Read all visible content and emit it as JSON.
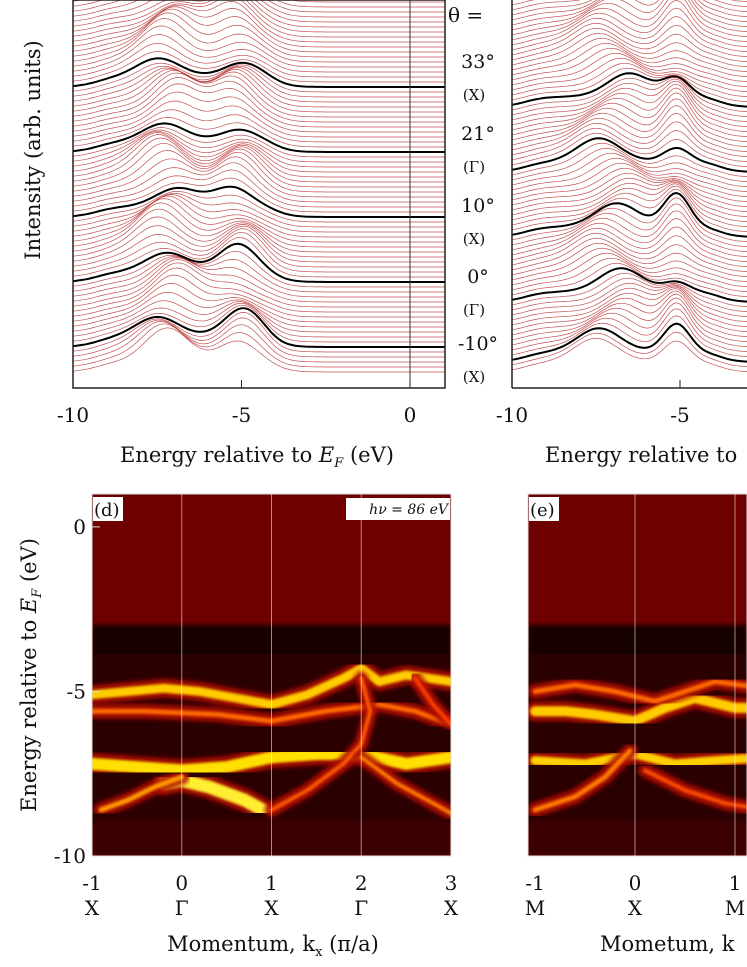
{
  "chart_data": [
    {
      "id": "top-left",
      "type": "line",
      "description_kind": "stacked energy distribution curves",
      "xlabel_prefix": "Energy relative to ",
      "xlabel_symbol": "E",
      "xlabel_sub": "F",
      "xlabel_suffix": " (eV)",
      "ylabel": "Intensity (arb. units)",
      "xlim": [
        -10,
        1
      ],
      "xticks": [
        -10,
        -5,
        0
      ],
      "angles": [
        {
          "theta": "33°",
          "point": "(X)"
        },
        {
          "theta": "21°",
          "point": "(Γ)"
        },
        {
          "theta": "10°",
          "point": "(X)"
        },
        {
          "theta": "0°",
          "point": "(Γ)"
        },
        {
          "theta": "-10°",
          "point": "(X)"
        }
      ],
      "theta_label": "θ ="
    },
    {
      "id": "top-right",
      "type": "line",
      "description_kind": "stacked energy distribution curves",
      "xlabel_text": "Energy relative to",
      "xlim": [
        -10,
        1
      ],
      "xticks": [
        -10,
        -5
      ]
    },
    {
      "id": "panel-d",
      "type": "heatmap",
      "panel_label": "(d)",
      "photon_label": "hν = 86 eV",
      "ylabel_prefix": "Energy relative to ",
      "ylabel_symbol": "E",
      "ylabel_sub": "F",
      "ylabel_suffix": " (eV)",
      "xlabel_prefix": "Momentum, k",
      "xlabel_sub": "x",
      "xlabel_suffix": " (π/a)",
      "xlim": [
        -1,
        3
      ],
      "ylim": [
        -10,
        1
      ],
      "xticks": [
        -1,
        0,
        1,
        2,
        3
      ],
      "xtick_points": [
        "X",
        "Γ",
        "X",
        "Γ",
        "X"
      ],
      "yticks": [
        0,
        -5,
        -10
      ]
    },
    {
      "id": "panel-e",
      "type": "heatmap",
      "panel_label": "(e)",
      "xlabel_text": "Mometum, k",
      "xticks": [
        -1,
        0,
        1
      ],
      "xtick_points": [
        "M",
        "X",
        "M"
      ]
    }
  ]
}
